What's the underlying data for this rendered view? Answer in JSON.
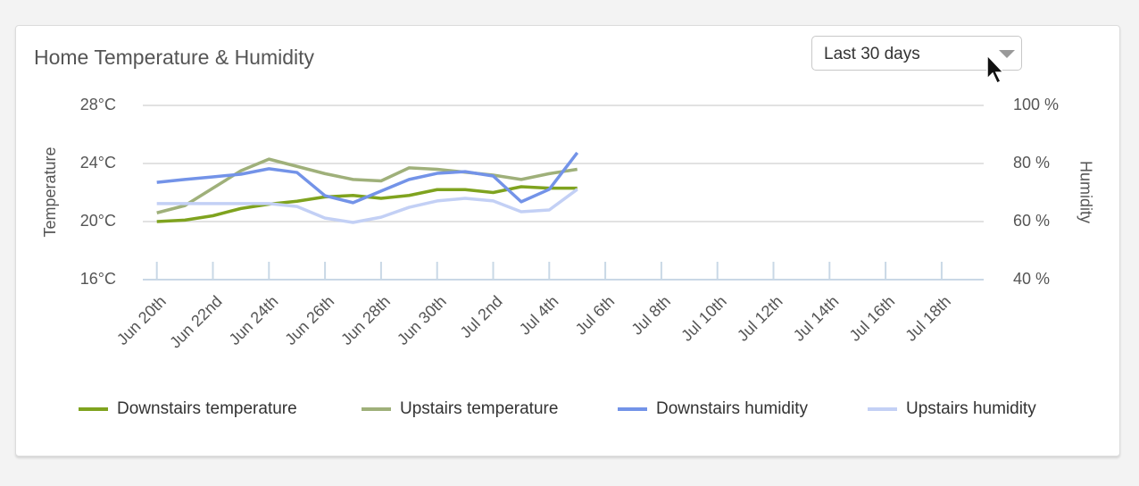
{
  "dropdown": {
    "label": "Last 30 days"
  },
  "chart_data": {
    "type": "line",
    "title": "Home Temperature & Humidity",
    "ylabel": "Temperature",
    "y2label": "Humidity",
    "categories": [
      "Jun 20th",
      null,
      "Jun 22nd",
      null,
      "Jun 24th",
      null,
      "Jun 26th",
      null,
      "Jun 28th",
      null,
      "Jun 30th",
      null,
      "Jul 2nd",
      null,
      "Jul 4th",
      null,
      "Jul 6th",
      null,
      "Jul 8th",
      null,
      "Jul 10th",
      null,
      "Jul 12th",
      null,
      "Jul 14th",
      null,
      "Jul 16th",
      null,
      "Jul 18th",
      null
    ],
    "ylim": [
      16,
      28
    ],
    "yticks": [
      {
        "value": 16,
        "label": "16°C"
      },
      {
        "value": 20,
        "label": "20°C"
      },
      {
        "value": 24,
        "label": "24°C"
      },
      {
        "value": 28,
        "label": "28°C"
      }
    ],
    "y2lim": [
      40,
      100
    ],
    "y2ticks": [
      {
        "value": 40,
        "label": "40 %"
      },
      {
        "value": 60,
        "label": "60 %"
      },
      {
        "value": 80,
        "label": "80 %"
      },
      {
        "value": 100,
        "label": "100 %"
      }
    ],
    "grid": true,
    "legend": "bottom",
    "series": [
      {
        "name": "Downstairs temperature",
        "color": "#7fa31f",
        "values": [
          20.0,
          20.1,
          20.4,
          20.9,
          21.2,
          21.4,
          21.7,
          21.8,
          21.6,
          21.8,
          22.2,
          22.2,
          22.0,
          22.4,
          22.3,
          22.3,
          null,
          null,
          null,
          null,
          null,
          null,
          null,
          null,
          null,
          null,
          null,
          null,
          null,
          null
        ]
      },
      {
        "name": "Upstairs temperature",
        "color": "#9fb07a",
        "values": [
          20.6,
          21.1,
          22.3,
          23.5,
          24.3,
          23.8,
          23.3,
          22.9,
          22.8,
          23.7,
          23.6,
          23.4,
          23.2,
          22.9,
          23.3,
          23.6,
          null,
          null,
          null,
          null,
          null,
          null,
          null,
          null,
          null,
          null,
          null,
          null,
          null,
          null
        ]
      },
      {
        "name": "Downstairs humidity",
        "color": "#7393e8",
        "axis": "y2",
        "values": [
          73.5,
          74.5,
          75.4,
          76.3,
          78.2,
          76.9,
          68.9,
          66.5,
          70.5,
          74.5,
          76.6,
          77.2,
          75.7,
          66.8,
          71.1,
          83.7,
          null,
          null,
          null,
          null,
          null,
          null,
          null,
          null,
          null,
          null,
          null,
          null,
          null,
          null
        ]
      },
      {
        "name": "Upstairs humidity",
        "color": "#c3d0f5",
        "axis": "y2",
        "values": [
          66.2,
          66.2,
          66.2,
          66.2,
          66.2,
          65.2,
          61.2,
          59.7,
          61.5,
          64.9,
          67.1,
          68.0,
          67.1,
          63.4,
          64.0,
          71.1,
          null,
          null,
          null,
          null,
          null,
          null,
          null,
          null,
          null,
          null,
          null,
          null,
          null,
          null
        ]
      }
    ]
  }
}
